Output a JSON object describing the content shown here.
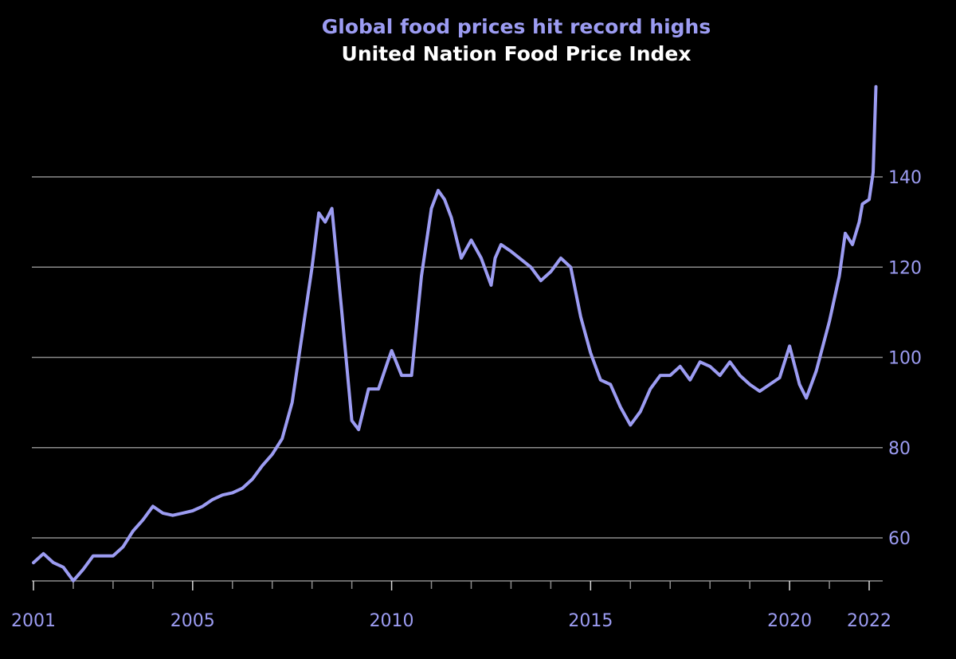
{
  "chart_data": {
    "type": "line",
    "title": "Global food prices hit record highs",
    "subtitle": "United Nation Food Price Index",
    "xlabel": "",
    "ylabel": "",
    "x_tick_labels": [
      "2001",
      "2005",
      "2010",
      "2015",
      "2020",
      "2022"
    ],
    "y_tick_labels": [
      "60",
      "80",
      "100",
      "120",
      "140"
    ],
    "ylim": [
      50,
      160
    ],
    "xlim": [
      2001.0,
      2022.2
    ],
    "grid": "horizontal",
    "legend": "none",
    "colors": {
      "background": "#000000",
      "line": "#9c9cf2",
      "title": "#9c9cf2",
      "subtitle": "#ffffff",
      "grid": "#8c8c8c",
      "ticks": "#9c9cf2"
    },
    "series": [
      {
        "x": [
          2001.0,
          2001.25,
          2001.5,
          2001.75,
          2002.0,
          2002.25,
          2002.5,
          2002.75,
          2003.0,
          2003.25,
          2003.5,
          2003.75,
          2004.0,
          2004.25,
          2004.5,
          2004.75,
          2005.0,
          2005.25,
          2005.5,
          2005.75,
          2006.0,
          2006.25,
          2006.5,
          2006.75,
          2007.0,
          2007.25,
          2007.5,
          2007.75,
          2008.0,
          2008.17,
          2008.33,
          2008.5,
          2008.75,
          2009.0,
          2009.17,
          2009.42,
          2009.67,
          2009.9,
          2010.0,
          2010.25,
          2010.5,
          2010.75,
          2011.0,
          2011.17,
          2011.33,
          2011.5,
          2011.75,
          2012.0,
          2012.25,
          2012.5,
          2012.6,
          2012.75,
          2013.0,
          2013.5,
          2013.75,
          2014.0,
          2014.25,
          2014.5,
          2014.75,
          2015.0,
          2015.25,
          2015.5,
          2015.75,
          2016.0,
          2016.25,
          2016.5,
          2016.75,
          2017.0,
          2017.25,
          2017.5,
          2017.75,
          2018.0,
          2018.25,
          2018.5,
          2018.75,
          2019.0,
          2019.25,
          2019.5,
          2019.75,
          2020.0,
          2020.25,
          2020.42,
          2020.67,
          2021.0,
          2021.25,
          2021.4,
          2021.58,
          2021.75,
          2021.83,
          2022.0,
          2022.1,
          2022.17
        ],
        "values": [
          54.5,
          56.5,
          54.5,
          53.5,
          50.5,
          53,
          56,
          56,
          56,
          58,
          61.5,
          64,
          67,
          65.5,
          65,
          65.5,
          66,
          67,
          68.5,
          69.5,
          70,
          71,
          73,
          76,
          78.5,
          82,
          90,
          105,
          120,
          132,
          130,
          133,
          110,
          86,
          84,
          93,
          93,
          99,
          101.5,
          96,
          96,
          118,
          133,
          137,
          135,
          131,
          122,
          126,
          122,
          116,
          122,
          125,
          123.5,
          120,
          117,
          119,
          122,
          120,
          109,
          101,
          95,
          94,
          89,
          85,
          88,
          93,
          96,
          96,
          98,
          95,
          99,
          98,
          96,
          99,
          96,
          94,
          92.5,
          94,
          95.5,
          102.5,
          94,
          91,
          97,
          108,
          118,
          127.5,
          125,
          130,
          134,
          135,
          141,
          160
        ]
      }
    ]
  }
}
